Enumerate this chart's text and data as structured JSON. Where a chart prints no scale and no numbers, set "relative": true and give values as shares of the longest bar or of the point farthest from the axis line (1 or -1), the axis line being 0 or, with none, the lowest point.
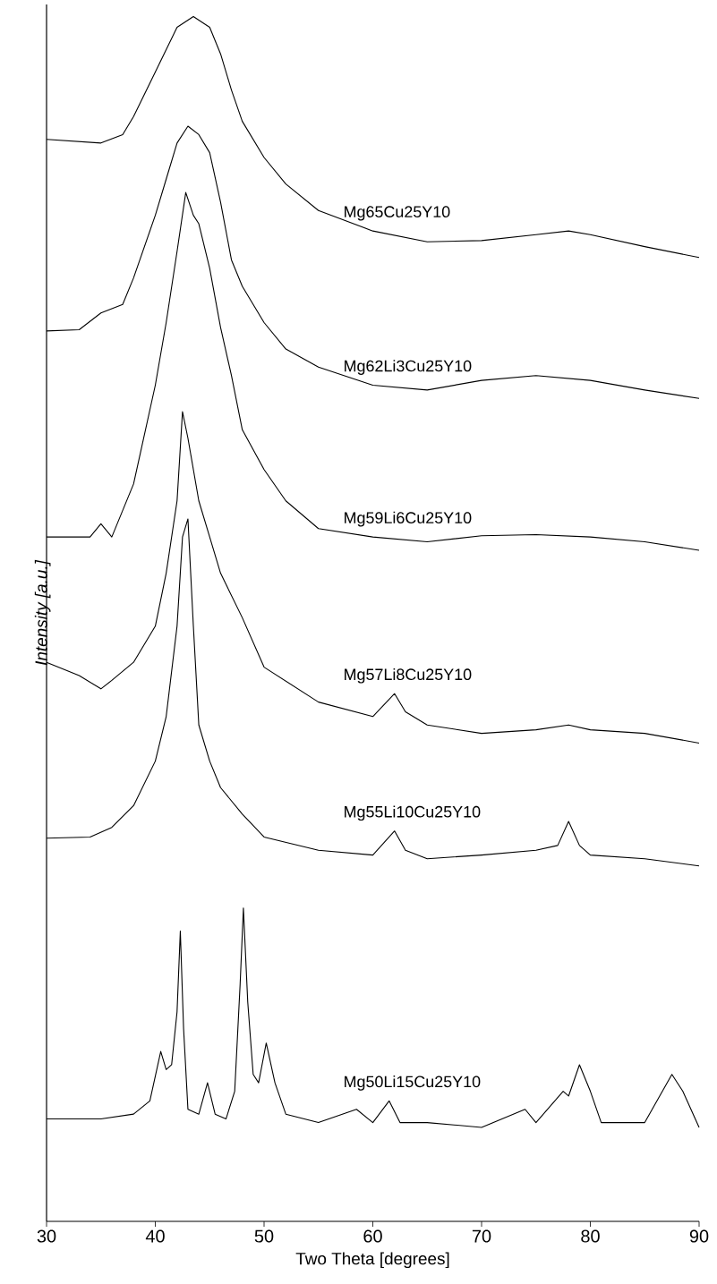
{
  "chart_data": {
    "type": "line",
    "relative": true,
    "xlabel": "Two Theta [degrees]",
    "ylabel": "Intensity [a.u.]",
    "xlim": [
      30,
      90
    ],
    "xticks": [
      30,
      40,
      50,
      60,
      70,
      80,
      90
    ],
    "series": [
      {
        "name": "Mg65Cu25Y10",
        "color": "#000000",
        "x": [
          30,
          35,
          37,
          38,
          40,
          42,
          43.5,
          45,
          46,
          47,
          48,
          50,
          52,
          55,
          60,
          65,
          70,
          75,
          78,
          80,
          85,
          90
        ],
        "values": [
          0.898,
          0.895,
          0.902,
          0.917,
          0.954,
          0.991,
          1.0,
          0.991,
          0.969,
          0.939,
          0.913,
          0.883,
          0.861,
          0.839,
          0.822,
          0.813,
          0.814,
          0.819,
          0.822,
          0.819,
          0.809,
          0.8
        ]
      },
      {
        "name": "Mg62Li3Cu25Y10",
        "color": "#000000",
        "x": [
          30,
          33,
          35,
          37,
          38,
          40,
          41,
          42,
          43,
          44,
          45,
          46,
          47,
          48,
          50,
          52,
          55,
          60,
          65,
          70,
          75,
          80,
          85,
          90
        ],
        "values": [
          0.739,
          0.74,
          0.754,
          0.761,
          0.783,
          0.835,
          0.865,
          0.895,
          0.909,
          0.902,
          0.887,
          0.846,
          0.798,
          0.776,
          0.746,
          0.724,
          0.709,
          0.694,
          0.69,
          0.698,
          0.702,
          0.698,
          0.69,
          0.683
        ]
      },
      {
        "name": "Mg59Li6Cu25Y10",
        "color": "#000000",
        "x": [
          30,
          34,
          35,
          36,
          38,
          40,
          41,
          42,
          42.8,
          43.5,
          44,
          45,
          46,
          47,
          48,
          50,
          52,
          55,
          60,
          65,
          70,
          75,
          80,
          85,
          90
        ],
        "values": [
          0.568,
          0.568,
          0.579,
          0.568,
          0.612,
          0.694,
          0.746,
          0.805,
          0.854,
          0.835,
          0.828,
          0.791,
          0.742,
          0.702,
          0.657,
          0.624,
          0.598,
          0.575,
          0.568,
          0.564,
          0.569,
          0.57,
          0.568,
          0.564,
          0.557
        ]
      },
      {
        "name": "Mg57Li8Cu25Y10",
        "color": "#000000",
        "x": [
          30,
          33,
          35,
          36,
          38,
          40,
          41,
          42,
          42.5,
          43,
          44,
          45,
          46,
          48,
          50,
          55,
          60,
          62,
          63,
          65,
          70,
          75,
          78,
          80,
          85,
          90
        ],
        "values": [
          0.464,
          0.453,
          0.442,
          0.449,
          0.464,
          0.494,
          0.538,
          0.598,
          0.672,
          0.65,
          0.598,
          0.568,
          0.538,
          0.501,
          0.46,
          0.431,
          0.419,
          0.438,
          0.423,
          0.412,
          0.405,
          0.408,
          0.412,
          0.408,
          0.405,
          0.397
        ]
      },
      {
        "name": "Mg55Li10Cu25Y10",
        "color": "#000000",
        "x": [
          30,
          34,
          36,
          38,
          40,
          41,
          42,
          42.5,
          43,
          43.5,
          44,
          45,
          46,
          48,
          50,
          55,
          60,
          62,
          63,
          65,
          70,
          75,
          77,
          78,
          79,
          80,
          85,
          90
        ],
        "values": [
          0.318,
          0.319,
          0.327,
          0.345,
          0.382,
          0.419,
          0.494,
          0.568,
          0.583,
          0.494,
          0.412,
          0.382,
          0.36,
          0.338,
          0.319,
          0.308,
          0.304,
          0.324,
          0.308,
          0.301,
          0.304,
          0.308,
          0.312,
          0.332,
          0.312,
          0.304,
          0.301,
          0.295
        ]
      },
      {
        "name": "Mg50Li15Cu25Y10",
        "color": "#000000",
        "x": [
          30,
          35,
          38,
          39.5,
          40.5,
          41,
          41.5,
          42,
          42.3,
          42.6,
          43,
          44,
          44.8,
          45.5,
          46.5,
          47.3,
          47.8,
          48.1,
          48.5,
          49,
          49.5,
          50.2,
          51,
          52,
          55,
          58.5,
          60,
          61.5,
          62.5,
          65,
          70,
          74,
          75,
          77.5,
          78,
          79,
          80,
          81,
          85,
          87.5,
          88.5,
          90
        ],
        "values": [
          0.085,
          0.085,
          0.089,
          0.1,
          0.141,
          0.126,
          0.13,
          0.174,
          0.241,
          0.16,
          0.093,
          0.089,
          0.115,
          0.089,
          0.085,
          0.108,
          0.197,
          0.26,
          0.182,
          0.122,
          0.115,
          0.148,
          0.115,
          0.089,
          0.082,
          0.093,
          0.082,
          0.1,
          0.082,
          0.082,
          0.078,
          0.093,
          0.082,
          0.108,
          0.104,
          0.13,
          0.108,
          0.082,
          0.082,
          0.122,
          0.108,
          0.078
        ]
      }
    ]
  }
}
